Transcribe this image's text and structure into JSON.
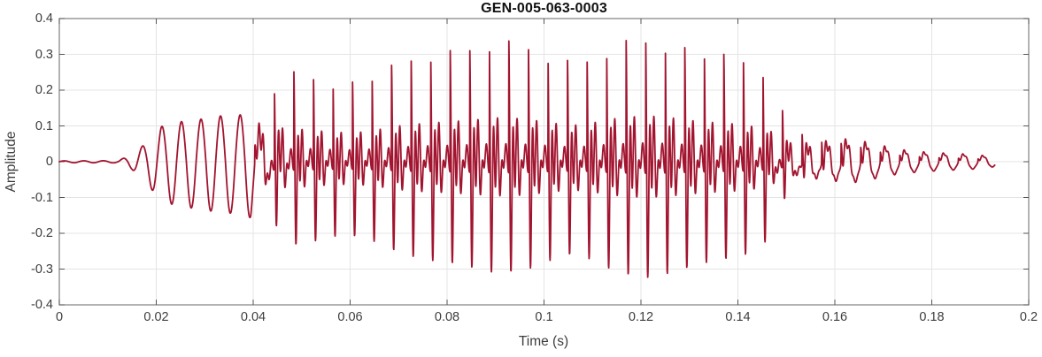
{
  "chart_data": {
    "type": "line",
    "title": "GEN-005-063-0003",
    "xlabel": "Time (s)",
    "ylabel": "Amplitude",
    "xlim": [
      0,
      0.2
    ],
    "ylim": [
      -0.4,
      0.4
    ],
    "xticks": [
      0,
      0.02,
      0.04,
      0.06,
      0.08,
      0.1,
      0.12,
      0.14,
      0.16,
      0.18,
      0.2
    ],
    "xtick_labels": [
      "0",
      "0.02",
      "0.04",
      "0.06",
      "0.08",
      "0.1",
      "0.12",
      "0.14",
      "0.16",
      "0.18",
      "0.2"
    ],
    "yticks": [
      -0.4,
      -0.3,
      -0.2,
      -0.1,
      0,
      0.1,
      0.2,
      0.3,
      0.4
    ],
    "ytick_labels": [
      "-0.4",
      "-0.3",
      "-0.2",
      "-0.1",
      "0",
      "0.1",
      "0.2",
      "0.3",
      "0.4"
    ],
    "grid": true,
    "legend": "none",
    "grid_color": "#e4e4e4",
    "axis_color": "#808080",
    "tick_color": "#555555",
    "label_color": "#3d3d3d",
    "title_color": "#111111",
    "line_color": "#A2142F",
    "line_width": 1.8,
    "signal": {
      "description": "speech-like audio waveform: silence to 0.012 s, ~248 Hz sine onset 0.015-0.042 s (peak ~0.15), dense voiced harmonic burst 0.043-0.148 s (max ~+0.385 / -0.31 near 0.113 s), decaying ripple tail ending at 0.193 s",
      "duration_s": 0.193,
      "sample_rate_hz": 20000,
      "f0_hz": 248,
      "formant1_hz": 1150,
      "formant1_decay_s": 0.0013,
      "formant2_hz": 550,
      "formant2_decay_s": 0.003,
      "formant2_weight": 0.35,
      "formant2_phase": 1.0,
      "negative_gain": 1.12,
      "modulation": [
        [
          23.7,
          0.07,
          1.3
        ],
        [
          41.3,
          0.05,
          2.1
        ]
      ],
      "envelope": [
        [
          0,
          0.002
        ],
        [
          0.012,
          0.003
        ],
        [
          0.015,
          0.02
        ],
        [
          0.018,
          0.055
        ],
        [
          0.021,
          0.1
        ],
        [
          0.025,
          0.115
        ],
        [
          0.029,
          0.125
        ],
        [
          0.033,
          0.135
        ],
        [
          0.037,
          0.13
        ],
        [
          0.04,
          0.135
        ],
        [
          0.0425,
          0.2
        ],
        [
          0.046,
          0.23
        ],
        [
          0.052,
          0.24
        ],
        [
          0.058,
          0.25
        ],
        [
          0.064,
          0.26
        ],
        [
          0.07,
          0.28
        ],
        [
          0.076,
          0.3
        ],
        [
          0.082,
          0.315
        ],
        [
          0.088,
          0.32
        ],
        [
          0.094,
          0.315
        ],
        [
          0.1,
          0.32
        ],
        [
          0.106,
          0.325
        ],
        [
          0.112,
          0.345
        ],
        [
          0.118,
          0.335
        ],
        [
          0.124,
          0.33
        ],
        [
          0.13,
          0.32
        ],
        [
          0.136,
          0.3
        ],
        [
          0.142,
          0.28
        ],
        [
          0.146,
          0.26
        ],
        [
          0.15,
          0.16
        ],
        [
          0.154,
          0.115
        ],
        [
          0.158,
          0.105
        ],
        [
          0.163,
          0.095
        ],
        [
          0.168,
          0.065
        ],
        [
          0.173,
          0.045
        ],
        [
          0.178,
          0.038
        ],
        [
          0.183,
          0.033
        ],
        [
          0.188,
          0.028
        ],
        [
          0.193,
          0.018
        ]
      ],
      "voicing": [
        [
          0,
          0
        ],
        [
          0.0395,
          0
        ],
        [
          0.042,
          0.8
        ],
        [
          0.048,
          1
        ],
        [
          0.145,
          1
        ],
        [
          0.151,
          0.8
        ],
        [
          0.156,
          0.6
        ],
        [
          0.162,
          0.5
        ],
        [
          0.17,
          0.4
        ],
        [
          0.18,
          0.33
        ],
        [
          0.193,
          0.3
        ]
      ]
    }
  }
}
